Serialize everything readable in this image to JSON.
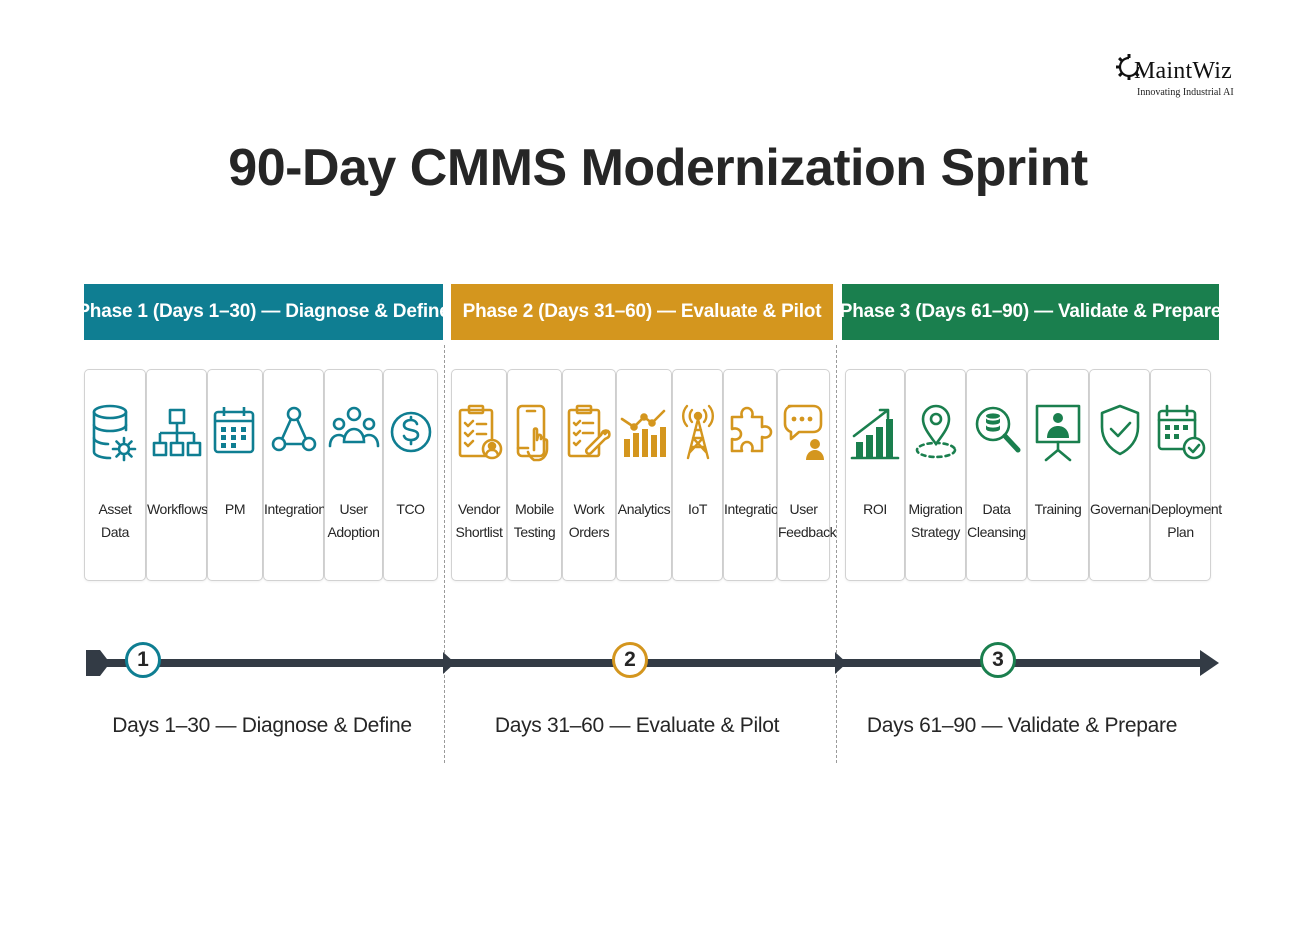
{
  "logo": {
    "name": "MaintWiz",
    "tagline": "Innovating Industrial AI"
  },
  "title": "90-Day CMMS Modernization Sprint",
  "colors": {
    "phase1": "#0f7e92",
    "phase2": "#d4961e",
    "phase3": "#1a7f4e",
    "line": "#333b45"
  },
  "phases": [
    {
      "header": "Phase 1 (Days 1–30) — Diagnose & Define",
      "marker": "1",
      "label": "Days 1–30 — Diagnose & Define",
      "cards": [
        {
          "label": "Asset Data",
          "icon": "database-gear-icon"
        },
        {
          "label": "Workflows",
          "icon": "workflow-hierarchy-icon"
        },
        {
          "label": "PM",
          "icon": "calendar-icon"
        },
        {
          "label": "Integrations",
          "icon": "network-nodes-icon"
        },
        {
          "label": "User Adoption",
          "icon": "users-group-icon"
        },
        {
          "label": "TCO",
          "icon": "dollar-circle-icon"
        }
      ]
    },
    {
      "header": "Phase 2 (Days 31–60) — Evaluate & Pilot",
      "marker": "2",
      "label": "Days 31–60 — Evaluate & Pilot",
      "cards": [
        {
          "label": "Vendor Shortlist",
          "icon": "clipboard-checklist-icon"
        },
        {
          "label": "Mobile Testing",
          "icon": "mobile-touch-icon"
        },
        {
          "label": "Work Orders",
          "icon": "clipboard-wrench-icon"
        },
        {
          "label": "Analytics",
          "icon": "bar-chart-trend-icon"
        },
        {
          "label": "IoT",
          "icon": "radio-tower-icon"
        },
        {
          "label": "Integration",
          "icon": "puzzle-piece-icon"
        },
        {
          "label": "User Feedback",
          "icon": "chat-user-icon"
        }
      ]
    },
    {
      "header": "Phase 3 (Days 61–90) — Validate & Prepare",
      "marker": "3",
      "label": "Days 61–90 — Validate & Prepare",
      "cards": [
        {
          "label": "ROI",
          "icon": "growth-chart-icon"
        },
        {
          "label": "Migration Strategy",
          "icon": "location-pin-icon"
        },
        {
          "label": "Data Cleansing",
          "icon": "database-search-icon"
        },
        {
          "label": "Training",
          "icon": "presentation-board-icon"
        },
        {
          "label": "Governance",
          "icon": "shield-check-icon"
        },
        {
          "label": "Deployment Plan",
          "icon": "calendar-check-icon"
        }
      ]
    }
  ]
}
